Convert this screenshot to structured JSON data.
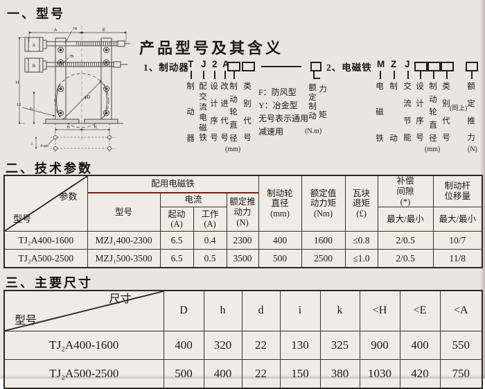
{
  "page": {
    "background": "#e9e6e0",
    "border_color": "#37322a",
    "accent_red": "#6d2318"
  },
  "section_model": {
    "title": "一、型号",
    "heading": "产品型号及其含义",
    "brake": {
      "prefix": "1、制动器",
      "code_t": "T",
      "code_j": "J",
      "code_2": "2",
      "code_a": "A",
      "label_brake": "制动器",
      "label_magnet_type": "配交流电磁铁",
      "label_design_no": "设计序号",
      "label_improve": "改进代号",
      "label_wheel_dia": "制动轮直径",
      "wheel_unit": "(mm)",
      "label_class": "类别代号",
      "note_f": "F：防风型",
      "note_y": "Y：冶金型",
      "note_none1": "无号表示通用",
      "note_none2": "减速用"
    },
    "torque": {
      "label_main": "额定制动",
      "label_sub": "力矩",
      "unit": "(N.m)"
    },
    "magnet": {
      "prefix": "2、电磁铁",
      "code_m": "M",
      "code_z": "Z",
      "code_j": "J",
      "label_magnet": "电磁铁",
      "label_brake": "制动",
      "label_energy": "交流节能",
      "label_design_no": "设计序号",
      "label_wheel_dia": "制动轮直径",
      "wheel_unit": "(mm)",
      "label_class": "类别代号",
      "same_as_above": "(同上)",
      "label_thrust": "额定推力",
      "thrust_unit": "(N)"
    },
    "drawing": {
      "dim_a": "A",
      "dim_e": "E",
      "part_7a": "7A",
      "part_7b": "7B",
      "mag_a": "A",
      "mag_b": "B",
      "dim_h_total": "H",
      "dim_h_small": "h",
      "note_12": "12",
      "wheel_dia": "φD",
      "dim_k1": "K",
      "dim_k2": "K",
      "dim_i": "i",
      "holes": "4-φd"
    }
  },
  "section_params": {
    "title": "二、技术参数",
    "table": {
      "diag_top": "参数",
      "diag_bottom": "型号",
      "group_magnet": "配用电磁铁",
      "col_model": "型号",
      "group_current": "电流",
      "col_start": "起动\n(A)",
      "col_work": "工作\n(A)",
      "col_thrust": "额定推\n动力\n(N)",
      "col_wheel": "制动轮\n直径\n(mm)",
      "col_torque": "额定值\n动力矩\n(Nm)",
      "col_pad": "瓦块\n退矩\n(£)",
      "col_comp": "补偿\n间隙\n(*)",
      "col_lever": "制动杆\n位移量",
      "max_min_1": "最大/最小",
      "max_min_2": "最大/最小",
      "rows": [
        [
          "TJ₂A400-1600",
          "MZJ₁400-2300",
          "6.5",
          "0.4",
          "2300",
          "400",
          "1600",
          "≤0.8",
          "2/0.5",
          "10/7"
        ],
        [
          "TJ₂A500-2500",
          "MZJ₁500-3500",
          "6.5",
          "0.5",
          "3500",
          "500",
          "2500",
          "≤1.0",
          "2/0.5",
          "11/8"
        ]
      ]
    }
  },
  "section_dims": {
    "title": "三、主要尺寸",
    "table": {
      "diag_top": "尺寸",
      "diag_bottom": "型号",
      "col_d": "D",
      "col_h": "h",
      "col_d2": "d",
      "col_i": "i",
      "col_k": "k",
      "col_H": "<H",
      "col_E": "<E",
      "col_A": "<A",
      "rows": [
        [
          "TJ₂A400-1600",
          "400",
          "320",
          "22",
          "130",
          "325",
          "900",
          "400",
          "550"
        ],
        [
          "TJ₂A500-2500",
          "500",
          "400",
          "22",
          "150",
          "380",
          "1030",
          "420",
          "750"
        ]
      ]
    }
  }
}
